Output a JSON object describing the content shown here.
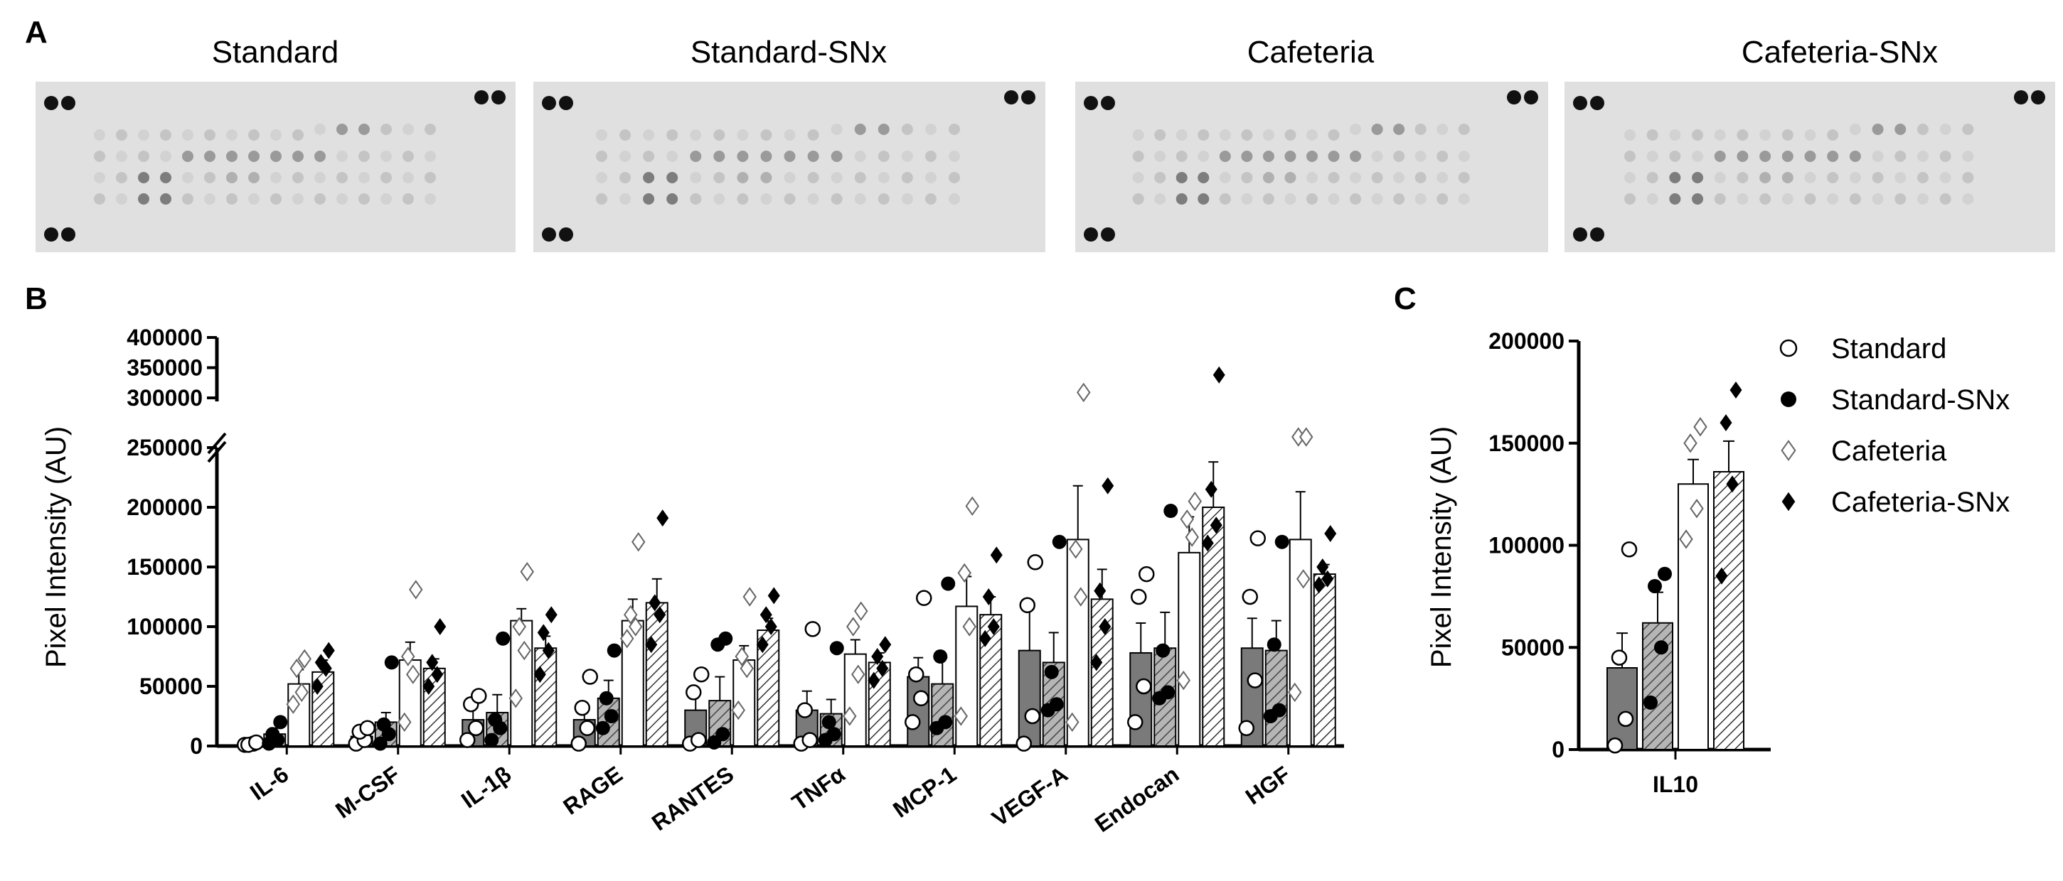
{
  "panels": {
    "A": "A",
    "B": "B",
    "C": "C"
  },
  "blots": [
    {
      "title": "Standard"
    },
    {
      "title": "Standard-SNx"
    },
    {
      "title": "Cafeteria"
    },
    {
      "title": "Cafeteria-SNx"
    }
  ],
  "colors": {
    "standard_bar": "#7a7a7a",
    "standard_snx_bar": "#9c9c9c",
    "cafeteria_bar": "#ffffff",
    "cafeteria_snx_bar": "#ffffff",
    "blot_background": "#e0e0e0"
  },
  "chart_data": [
    {
      "id": "B",
      "type": "bar",
      "title": "",
      "ylabel": "Pixel Intensity (AU)",
      "xlabel": "",
      "ylim": [
        0,
        400000
      ],
      "axis_break": [
        250000,
        300000
      ],
      "yticks_lower": [
        "0",
        "50000",
        "100000",
        "150000",
        "200000",
        "250000"
      ],
      "yticks_upper": [
        "300000",
        "350000",
        "400000"
      ],
      "categories": [
        "IL-6",
        "M-CSF",
        "IL-1β",
        "RAGE",
        "RANTES",
        "TNFα",
        "MCP-1",
        "VEGF-A",
        "Endocan",
        "HGF"
      ],
      "series": [
        {
          "name": "Standard",
          "style": "solid-dark",
          "marker": "open-circle",
          "means": [
            2000,
            8000,
            22000,
            22000,
            30000,
            30000,
            58000,
            80000,
            78000,
            82000
          ],
          "errors": [
            1000,
            4000,
            10000,
            10000,
            15000,
            16000,
            16000,
            35000,
            25000,
            25000
          ],
          "points": [
            [
              1000,
              2000,
              1000,
              3000
            ],
            [
              2000,
              5000,
              12000,
              15000
            ],
            [
              5000,
              15000,
              35000,
              42000
            ],
            [
              2000,
              15000,
              32000,
              58000
            ],
            [
              2000,
              5000,
              45000,
              60000
            ],
            [
              2000,
              5000,
              30000,
              98000
            ],
            [
              20000,
              40000,
              60000,
              124000
            ],
            [
              2000,
              25000,
              118000,
              154000
            ],
            [
              20000,
              50000,
              125000,
              144000
            ],
            [
              15000,
              55000,
              125000,
              174000
            ]
          ]
        },
        {
          "name": "Standard-SNx",
          "style": "hatched-gray",
          "marker": "filled-circle",
          "means": [
            10000,
            20000,
            28000,
            40000,
            38000,
            27000,
            52000,
            70000,
            82000,
            80000
          ],
          "errors": [
            5000,
            8000,
            15000,
            15000,
            20000,
            12000,
            22000,
            25000,
            30000,
            25000
          ],
          "points": [
            [
              2000,
              5000,
              10000,
              20000
            ],
            [
              2000,
              10000,
              18000,
              70000
            ],
            [
              5000,
              15000,
              22000,
              90000
            ],
            [
              15000,
              25000,
              40000,
              80000
            ],
            [
              3000,
              10000,
              85000,
              90000
            ],
            [
              5000,
              10000,
              20000,
              82000
            ],
            [
              15000,
              20000,
              75000,
              136000
            ],
            [
              30000,
              35000,
              62000,
              171000
            ],
            [
              40000,
              45000,
              80000,
              197000
            ],
            [
              25000,
              30000,
              85000,
              171000
            ]
          ]
        },
        {
          "name": "Cafeteria",
          "style": "open",
          "marker": "open-diamond",
          "means": [
            52000,
            72000,
            105000,
            105000,
            72000,
            77000,
            117000,
            173000,
            162000,
            173000
          ],
          "errors": [
            12000,
            15000,
            10000,
            18000,
            12000,
            12000,
            25000,
            45000,
            30000,
            40000
          ],
          "points": [
            [
              35000,
              45000,
              65000,
              73000
            ],
            [
              20000,
              60000,
              75000,
              131000
            ],
            [
              40000,
              80000,
              100000,
              146000
            ],
            [
              90000,
              100000,
              110000,
              171000
            ],
            [
              30000,
              65000,
              75000,
              125000
            ],
            [
              25000,
              60000,
              100000,
              113000
            ],
            [
              25000,
              100000,
              145000,
              201000
            ],
            [
              20000,
              125000,
              165000,
              309000
            ],
            [
              55000,
              175000,
              190000,
              205000
            ],
            [
              45000,
              140000,
              260000,
              262000
            ]
          ]
        },
        {
          "name": "Cafeteria-SNx",
          "style": "hatched-white",
          "marker": "filled-diamond",
          "means": [
            62000,
            65000,
            82000,
            120000,
            97000,
            70000,
            110000,
            123000,
            200000,
            144000
          ],
          "errors": [
            10000,
            8000,
            10000,
            20000,
            10000,
            8000,
            15000,
            25000,
            38000,
            8000
          ],
          "points": [
            [
              50000,
              65000,
              70000,
              80000
            ],
            [
              50000,
              60000,
              70000,
              100000
            ],
            [
              60000,
              80000,
              95000,
              110000
            ],
            [
              85000,
              110000,
              120000,
              191000
            ],
            [
              85000,
              100000,
              110000,
              126000
            ],
            [
              55000,
              65000,
              75000,
              85000
            ],
            [
              90000,
              100000,
              125000,
              160000
            ],
            [
              70000,
              100000,
              130000,
              218000
            ],
            [
              170000,
              185000,
              215000,
              338000
            ],
            [
              135000,
              140000,
              150000,
              178000
            ]
          ]
        }
      ]
    },
    {
      "id": "C",
      "type": "bar",
      "title": "",
      "ylabel": "Pixel Intensity (AU)",
      "xlabel": "",
      "ylim": [
        0,
        200000
      ],
      "yticks": [
        "0",
        "50000",
        "100000",
        "150000",
        "200000"
      ],
      "categories": [
        "IL10"
      ],
      "series": [
        {
          "name": "Standard",
          "style": "solid-dark",
          "marker": "open-circle",
          "means": [
            40000
          ],
          "errors": [
            17000
          ],
          "points": [
            [
              2000,
              15000,
              45000,
              98000
            ]
          ]
        },
        {
          "name": "Standard-SNx",
          "style": "hatched-gray",
          "marker": "filled-circle",
          "means": [
            62000
          ],
          "errors": [
            15000
          ],
          "points": [
            [
              23000,
              50000,
              80000,
              86000
            ]
          ]
        },
        {
          "name": "Cafeteria",
          "style": "open",
          "marker": "open-diamond",
          "means": [
            130000
          ],
          "errors": [
            12000
          ],
          "points": [
            [
              103000,
              118000,
              150000,
              158000
            ]
          ]
        },
        {
          "name": "Cafeteria-SNx",
          "style": "hatched-white",
          "marker": "filled-diamond",
          "means": [
            136000
          ],
          "errors": [
            15000
          ],
          "points": [
            [
              85000,
              130000,
              160000,
              176000
            ]
          ]
        }
      ],
      "legend": {
        "position": "right",
        "entries": [
          {
            "label": "Standard",
            "marker": "open-circle"
          },
          {
            "label": "Standard-SNx",
            "marker": "filled-circle"
          },
          {
            "label": "Cafeteria",
            "marker": "open-diamond"
          },
          {
            "label": "Cafeteria-SNx",
            "marker": "filled-diamond"
          }
        ]
      }
    }
  ]
}
